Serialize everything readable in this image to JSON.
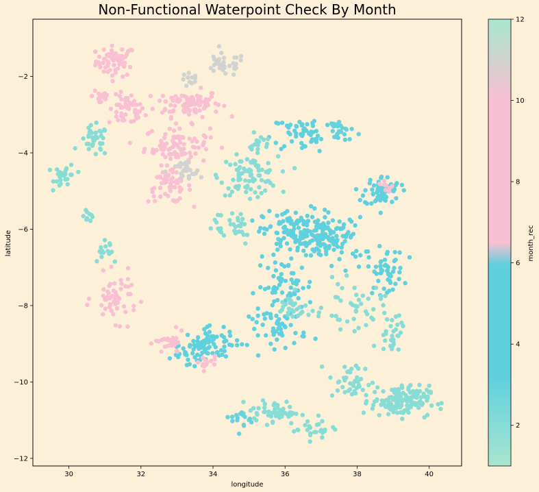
{
  "chart_data": {
    "type": "scatter",
    "title": "Non-Functional Waterpoint Check By Month",
    "xlabel": "longitude",
    "ylabel": "latitude",
    "xlim": [
      29.0,
      40.9
    ],
    "ylim": [
      -12.2,
      -0.5
    ],
    "xticks": [
      "30",
      "32",
      "34",
      "36",
      "38",
      "40"
    ],
    "yticks": [
      "−2",
      "−4",
      "−6",
      "−8",
      "−10",
      "−12"
    ],
    "grid": false,
    "colorbar": {
      "label": "month_rec",
      "range": [
        1,
        12
      ],
      "ticks": [
        "2",
        "4",
        "6",
        "8",
        "10",
        "12"
      ],
      "colors": [
        "#a8e6cf",
        "#5fd0de",
        "#5fd0de",
        "#f8c0d2",
        "#f8c0d2",
        "#a8e6cf"
      ],
      "stops": [
        0.0,
        0.2,
        0.45,
        0.5,
        0.82,
        1.0
      ]
    },
    "clusters": [
      {
        "lon": 31.3,
        "lat": -1.6,
        "sx": 0.55,
        "sy": 0.4,
        "month": 9,
        "n": 60
      },
      {
        "lon": 31.6,
        "lat": -2.9,
        "sx": 0.5,
        "sy": 0.4,
        "month": 9,
        "n": 50
      },
      {
        "lon": 33.3,
        "lat": -2.7,
        "sx": 0.9,
        "sy": 0.35,
        "month": 9,
        "n": 90
      },
      {
        "lon": 33.0,
        "lat": -3.8,
        "sx": 0.9,
        "sy": 0.5,
        "month": 10,
        "n": 90
      },
      {
        "lon": 32.8,
        "lat": -4.9,
        "sx": 0.6,
        "sy": 0.4,
        "month": 10,
        "n": 50
      },
      {
        "lon": 30.9,
        "lat": -2.5,
        "sx": 0.25,
        "sy": 0.3,
        "month": 9,
        "n": 20
      },
      {
        "lon": 34.3,
        "lat": -1.7,
        "sx": 0.6,
        "sy": 0.3,
        "month": 11,
        "n": 35
      },
      {
        "lon": 33.4,
        "lat": -2.1,
        "sx": 0.3,
        "sy": 0.2,
        "month": 11,
        "n": 12
      },
      {
        "lon": 30.7,
        "lat": -3.7,
        "sx": 0.4,
        "sy": 0.4,
        "month": 2,
        "n": 35
      },
      {
        "lon": 29.9,
        "lat": -4.6,
        "sx": 0.3,
        "sy": 0.3,
        "month": 2,
        "n": 30
      },
      {
        "lon": 30.5,
        "lat": -5.6,
        "sx": 0.2,
        "sy": 0.2,
        "month": 2,
        "n": 10
      },
      {
        "lon": 35.0,
        "lat": -4.6,
        "sx": 0.8,
        "sy": 0.5,
        "month": 2,
        "n": 90
      },
      {
        "lon": 33.2,
        "lat": -4.5,
        "sx": 0.5,
        "sy": 0.3,
        "month": 11,
        "n": 25
      },
      {
        "lon": 36.6,
        "lat": -3.5,
        "sx": 1.0,
        "sy": 0.5,
        "month": 4,
        "n": 60
      },
      {
        "lon": 38.7,
        "lat": -5.0,
        "sx": 0.5,
        "sy": 0.4,
        "month": 4,
        "n": 60
      },
      {
        "lon": 36.4,
        "lat": -6.1,
        "sx": 1.0,
        "sy": 0.6,
        "month": 4,
        "n": 160
      },
      {
        "lon": 37.5,
        "lat": -6.3,
        "sx": 0.7,
        "sy": 0.6,
        "month": 4,
        "n": 60
      },
      {
        "lon": 38.8,
        "lat": -7.1,
        "sx": 0.5,
        "sy": 0.6,
        "month": 4,
        "n": 50
      },
      {
        "lon": 36.0,
        "lat": -7.5,
        "sx": 0.8,
        "sy": 0.7,
        "month": 4,
        "n": 60
      },
      {
        "lon": 35.8,
        "lat": -8.6,
        "sx": 0.8,
        "sy": 0.5,
        "month": 4,
        "n": 50
      },
      {
        "lon": 34.0,
        "lat": -9.0,
        "sx": 0.8,
        "sy": 0.4,
        "month": 4,
        "n": 60
      },
      {
        "lon": 33.3,
        "lat": -9.2,
        "sx": 0.5,
        "sy": 0.3,
        "month": 5,
        "n": 30
      },
      {
        "lon": 35.3,
        "lat": -3.8,
        "sx": 0.3,
        "sy": 0.3,
        "month": 2,
        "n": 15
      },
      {
        "lon": 37.5,
        "lat": -3.4,
        "sx": 0.4,
        "sy": 0.3,
        "month": 3,
        "n": 20
      },
      {
        "lon": 31.3,
        "lat": -7.8,
        "sx": 0.6,
        "sy": 0.6,
        "month": 9,
        "n": 55
      },
      {
        "lon": 32.8,
        "lat": -9.0,
        "sx": 0.4,
        "sy": 0.3,
        "month": 9,
        "n": 30
      },
      {
        "lon": 33.8,
        "lat": -9.5,
        "sx": 0.3,
        "sy": 0.2,
        "month": 9,
        "n": 15
      },
      {
        "lon": 36.2,
        "lat": -8.1,
        "sx": 0.5,
        "sy": 0.4,
        "month": 2,
        "n": 30
      },
      {
        "lon": 37.9,
        "lat": -8.0,
        "sx": 0.8,
        "sy": 0.6,
        "month": 2,
        "n": 40
      },
      {
        "lon": 39.0,
        "lat": -8.7,
        "sx": 0.4,
        "sy": 0.6,
        "month": 2,
        "n": 30
      },
      {
        "lon": 39.2,
        "lat": -10.5,
        "sx": 0.8,
        "sy": 0.4,
        "month": 2,
        "n": 140
      },
      {
        "lon": 37.8,
        "lat": -10.0,
        "sx": 0.6,
        "sy": 0.5,
        "month": 2,
        "n": 40
      },
      {
        "lon": 35.7,
        "lat": -10.8,
        "sx": 0.7,
        "sy": 0.3,
        "month": 2,
        "n": 50
      },
      {
        "lon": 36.8,
        "lat": -11.2,
        "sx": 0.6,
        "sy": 0.3,
        "month": 2,
        "n": 25
      },
      {
        "lon": 34.8,
        "lat": -11.0,
        "sx": 0.3,
        "sy": 0.3,
        "month": 3,
        "n": 15
      },
      {
        "lon": 34.5,
        "lat": -5.9,
        "sx": 0.7,
        "sy": 0.5,
        "month": 2,
        "n": 30
      },
      {
        "lon": 31.0,
        "lat": -6.5,
        "sx": 0.4,
        "sy": 0.4,
        "month": 2,
        "n": 15
      },
      {
        "lon": 38.8,
        "lat": -4.9,
        "sx": 0.2,
        "sy": 0.2,
        "month": 9,
        "n": 8
      }
    ]
  }
}
